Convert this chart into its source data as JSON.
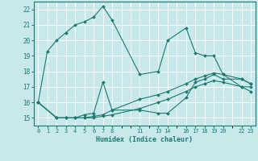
{
  "xlabel": "Humidex (Indice chaleur)",
  "xlim": [
    -0.5,
    23.5
  ],
  "ylim": [
    14.5,
    22.5
  ],
  "yticks": [
    15,
    16,
    17,
    18,
    19,
    20,
    21,
    22
  ],
  "xticks": [
    0,
    1,
    2,
    3,
    4,
    5,
    6,
    7,
    8,
    11,
    13,
    14,
    16,
    17,
    18,
    19,
    20,
    22,
    23
  ],
  "background_color": "#c8e8ec",
  "grid_color": "#ffffff",
  "line_color": "#1a7a6e",
  "lines": [
    {
      "x": [
        0,
        1,
        2,
        3,
        4,
        5,
        6,
        7,
        8,
        11,
        13,
        14,
        16,
        17,
        18,
        19,
        20,
        22,
        23
      ],
      "y": [
        16.0,
        19.3,
        20.0,
        20.5,
        21.0,
        21.2,
        21.5,
        22.2,
        21.3,
        17.8,
        18.0,
        20.0,
        20.8,
        19.2,
        19.0,
        19.0,
        17.8,
        17.0,
        17.0
      ]
    },
    {
      "x": [
        0,
        2,
        3,
        4,
        5,
        6,
        7,
        8,
        11,
        13,
        14,
        16,
        17,
        18,
        19,
        20,
        22,
        23
      ],
      "y": [
        16.0,
        15.0,
        15.0,
        15.0,
        15.2,
        15.3,
        17.3,
        15.5,
        15.5,
        15.3,
        15.3,
        16.3,
        17.3,
        17.5,
        17.8,
        17.5,
        17.5,
        17.2
      ]
    },
    {
      "x": [
        0,
        2,
        3,
        4,
        5,
        6,
        7,
        8,
        11,
        13,
        14,
        16,
        17,
        18,
        19,
        20,
        22,
        23
      ],
      "y": [
        16.0,
        15.0,
        15.0,
        15.0,
        15.0,
        15.1,
        15.2,
        15.5,
        16.2,
        16.5,
        16.7,
        17.2,
        17.5,
        17.7,
        17.9,
        17.8,
        17.5,
        17.2
      ]
    },
    {
      "x": [
        0,
        2,
        3,
        4,
        5,
        6,
        7,
        8,
        11,
        13,
        14,
        16,
        17,
        18,
        19,
        20,
        22,
        23
      ],
      "y": [
        16.0,
        15.0,
        15.0,
        15.0,
        15.0,
        15.0,
        15.1,
        15.2,
        15.6,
        16.0,
        16.2,
        16.7,
        17.0,
        17.2,
        17.4,
        17.3,
        17.0,
        16.7
      ]
    }
  ]
}
